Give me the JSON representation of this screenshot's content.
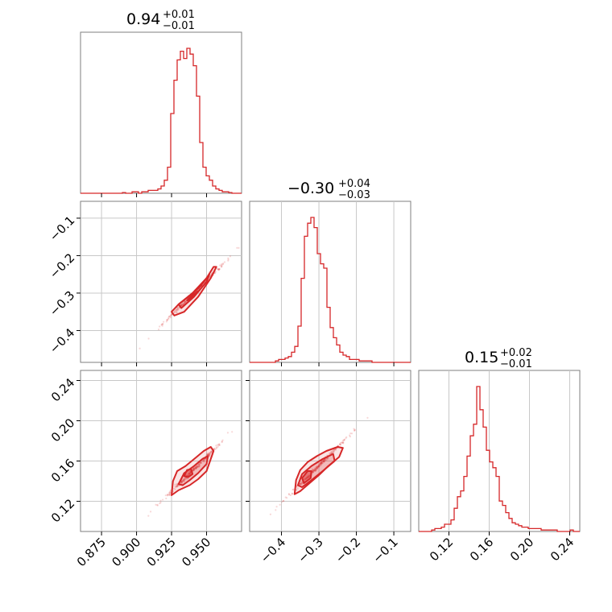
{
  "colors": {
    "accent": "#d62728",
    "grid": "#c8c8c8",
    "frame": "#7f7f7f"
  },
  "chart_data": {
    "type": "corner",
    "parameters": [
      {
        "title_value": "0.94",
        "title_plus": "+0.01",
        "title_minus": "−0.01",
        "range": [
          0.86,
          0.975
        ]
      },
      {
        "title_value": "−0.30",
        "title_plus": "+0.04",
        "title_minus": "−0.03",
        "range": [
          -0.485,
          -0.055
        ]
      },
      {
        "title_value": "0.15",
        "title_plus": "+0.02",
        "title_minus": "−0.01",
        "range": [
          0.09,
          0.25
        ]
      }
    ],
    "ticks": [
      {
        "values": [
          0.875,
          0.9,
          0.925,
          0.95
        ],
        "labels": [
          "0.875",
          "0.900",
          "0.925",
          "0.950"
        ]
      },
      {
        "values": [
          -0.4,
          -0.3,
          -0.2,
          -0.1
        ],
        "labels": [
          "−0.4",
          "−0.3",
          "−0.2",
          "−0.1"
        ]
      },
      {
        "values": [
          0.12,
          0.16,
          0.2,
          0.24
        ],
        "labels": [
          "0.12",
          "0.16",
          "0.20",
          "0.24"
        ]
      }
    ],
    "histograms": [
      {
        "param": 0,
        "bin_edges": [
          0.86,
          0.8623,
          0.8646,
          0.8669,
          0.8692,
          0.8715,
          0.8738,
          0.8761,
          0.8784,
          0.8807,
          0.883,
          0.8853,
          0.8876,
          0.8899,
          0.8922,
          0.8945,
          0.8968,
          0.8991,
          0.9014,
          0.9037,
          0.906,
          0.9083,
          0.9106,
          0.9129,
          0.9152,
          0.9175,
          0.9198,
          0.9221,
          0.9244,
          0.9267,
          0.929,
          0.9313,
          0.9336,
          0.9359,
          0.9382,
          0.9405,
          0.9428,
          0.9451,
          0.9474,
          0.9497,
          0.952,
          0.9543,
          0.9566,
          0.9589,
          0.9612,
          0.9635,
          0.9658,
          0.9681,
          0.9704,
          0.9727,
          0.975
        ],
        "counts": [
          0,
          0,
          0,
          0,
          0,
          0,
          0,
          0,
          0,
          0,
          0,
          0,
          0,
          0.005,
          0,
          0,
          0.01,
          0.01,
          0,
          0.01,
          0.01,
          0.02,
          0.02,
          0.02,
          0.03,
          0.05,
          0.09,
          0.18,
          0.55,
          0.78,
          0.92,
          0.98,
          0.93,
          1.0,
          0.96,
          0.88,
          0.67,
          0.35,
          0.18,
          0.12,
          0.09,
          0.05,
          0.03,
          0.02,
          0.01,
          0.01,
          0.005,
          0,
          0,
          0
        ]
      },
      {
        "param": 1,
        "bin_edges": [
          -0.485,
          -0.4764,
          -0.4678,
          -0.4592,
          -0.4506,
          -0.442,
          -0.4334,
          -0.4248,
          -0.4162,
          -0.4076,
          -0.399,
          -0.3904,
          -0.3818,
          -0.3732,
          -0.3646,
          -0.356,
          -0.3474,
          -0.3388,
          -0.3302,
          -0.3216,
          -0.313,
          -0.3044,
          -0.2958,
          -0.2872,
          -0.2786,
          -0.27,
          -0.2614,
          -0.2528,
          -0.2442,
          -0.2356,
          -0.227,
          -0.2184,
          -0.2098,
          -0.2012,
          -0.1926,
          -0.184,
          -0.1754,
          -0.1668,
          -0.1582,
          -0.1496,
          -0.141,
          -0.1324,
          -0.1238,
          -0.1152,
          -0.1066,
          -0.098,
          -0.0894,
          -0.0808,
          -0.0722,
          -0.0636,
          -0.055
        ],
        "counts": [
          0,
          0,
          0,
          0,
          0,
          0,
          0,
          0,
          0.01,
          0.02,
          0.02,
          0.03,
          0.04,
          0.07,
          0.11,
          0.25,
          0.58,
          0.87,
          0.96,
          1.0,
          0.93,
          0.75,
          0.68,
          0.65,
          0.38,
          0.24,
          0.17,
          0.12,
          0.07,
          0.05,
          0.04,
          0.02,
          0.02,
          0.02,
          0.01,
          0.01,
          0.01,
          0.01,
          0,
          0,
          0,
          0,
          0,
          0,
          0,
          0,
          0,
          0,
          0,
          0
        ]
      },
      {
        "param": 2,
        "bin_edges": [
          0.09,
          0.0932,
          0.0964,
          0.0996,
          0.1028,
          0.106,
          0.1092,
          0.1124,
          0.1156,
          0.1188,
          0.122,
          0.1252,
          0.1284,
          0.1316,
          0.1348,
          0.138,
          0.1412,
          0.1444,
          0.1476,
          0.1508,
          0.154,
          0.1572,
          0.1604,
          0.1636,
          0.1668,
          0.17,
          0.1732,
          0.1764,
          0.1796,
          0.1828,
          0.186,
          0.1892,
          0.1924,
          0.1956,
          0.1988,
          0.202,
          0.2052,
          0.2084,
          0.2116,
          0.2148,
          0.218,
          0.2212,
          0.2244,
          0.2276,
          0.2308,
          0.234,
          0.2372,
          0.2404,
          0.2436,
          0.2468,
          0.25
        ],
        "counts": [
          0,
          0,
          0,
          0,
          0.01,
          0.02,
          0.02,
          0.03,
          0.05,
          0.05,
          0.08,
          0.16,
          0.24,
          0.28,
          0.38,
          0.52,
          0.66,
          0.74,
          1.0,
          0.84,
          0.72,
          0.56,
          0.48,
          0.44,
          0.38,
          0.21,
          0.18,
          0.13,
          0.09,
          0.06,
          0.05,
          0.04,
          0.03,
          0.03,
          0.02,
          0.02,
          0.02,
          0.02,
          0.01,
          0.01,
          0.01,
          0.01,
          0.01,
          0,
          0,
          0,
          0,
          0.01,
          0,
          0
        ]
      }
    ],
    "pairs": [
      {
        "x_param": 0,
        "y_param": 1,
        "contours": [
          {
            "level": "outer",
            "points": [
              [
                0.925,
                -0.35
              ],
              [
                0.93,
                -0.33
              ],
              [
                0.94,
                -0.3
              ],
              [
                0.95,
                -0.26
              ],
              [
                0.955,
                -0.23
              ],
              [
                0.957,
                -0.23
              ],
              [
                0.953,
                -0.26
              ],
              [
                0.944,
                -0.31
              ],
              [
                0.934,
                -0.35
              ],
              [
                0.927,
                -0.36
              ]
            ]
          },
          {
            "level": "mid",
            "points": [
              [
                0.93,
                -0.33
              ],
              [
                0.937,
                -0.31
              ],
              [
                0.946,
                -0.28
              ],
              [
                0.952,
                -0.25
              ],
              [
                0.95,
                -0.27
              ],
              [
                0.941,
                -0.31
              ],
              [
                0.932,
                -0.34
              ]
            ]
          },
          {
            "level": "inner",
            "points": [
              [
                0.936,
                -0.32
              ],
              [
                0.94,
                -0.305
              ],
              [
                0.944,
                -0.295
              ],
              [
                0.942,
                -0.305
              ],
              [
                0.937,
                -0.318
              ]
            ]
          }
        ]
      },
      {
        "x_param": 0,
        "y_param": 2,
        "contours": [
          {
            "level": "outer",
            "points": [
              [
                0.925,
                0.126
              ],
              [
                0.926,
                0.14
              ],
              [
                0.929,
                0.15
              ],
              [
                0.935,
                0.155
              ],
              [
                0.942,
                0.163
              ],
              [
                0.948,
                0.17
              ],
              [
                0.953,
                0.174
              ],
              [
                0.955,
                0.17
              ],
              [
                0.952,
                0.158
              ],
              [
                0.95,
                0.15
              ],
              [
                0.944,
                0.142
              ],
              [
                0.938,
                0.136
              ],
              [
                0.93,
                0.131
              ]
            ]
          },
          {
            "level": "mid",
            "points": [
              [
                0.93,
                0.137
              ],
              [
                0.934,
                0.148
              ],
              [
                0.941,
                0.155
              ],
              [
                0.947,
                0.162
              ],
              [
                0.951,
                0.165
              ],
              [
                0.95,
                0.157
              ],
              [
                0.944,
                0.148
              ],
              [
                0.938,
                0.141
              ],
              [
                0.933,
                0.136
              ]
            ]
          },
          {
            "level": "inner",
            "points": [
              [
                0.934,
                0.145
              ],
              [
                0.936,
                0.151
              ],
              [
                0.939,
                0.152
              ],
              [
                0.94,
                0.147
              ],
              [
                0.937,
                0.144
              ]
            ]
          }
        ]
      },
      {
        "x_param": 1,
        "y_param": 2,
        "contours": [
          {
            "level": "outer",
            "points": [
              [
                -0.365,
                0.127
              ],
              [
                -0.361,
                0.141
              ],
              [
                -0.35,
                0.151
              ],
              [
                -0.33,
                0.159
              ],
              [
                -0.305,
                0.165
              ],
              [
                -0.28,
                0.17
              ],
              [
                -0.25,
                0.174
              ],
              [
                -0.236,
                0.173
              ],
              [
                -0.246,
                0.164
              ],
              [
                -0.275,
                0.155
              ],
              [
                -0.3,
                0.146
              ],
              [
                -0.325,
                0.138
              ],
              [
                -0.35,
                0.13
              ]
            ]
          },
          {
            "level": "mid",
            "points": [
              [
                -0.356,
                0.136
              ],
              [
                -0.345,
                0.147
              ],
              [
                -0.32,
                0.155
              ],
              [
                -0.29,
                0.162
              ],
              [
                -0.262,
                0.167
              ],
              [
                -0.258,
                0.16
              ],
              [
                -0.29,
                0.15
              ],
              [
                -0.32,
                0.141
              ],
              [
                -0.345,
                0.134
              ]
            ]
          },
          {
            "level": "inner",
            "points": [
              [
                -0.345,
                0.143
              ],
              [
                -0.33,
                0.15
              ],
              [
                -0.32,
                0.15
              ],
              [
                -0.322,
                0.143
              ],
              [
                -0.34,
                0.138
              ]
            ]
          }
        ]
      }
    ]
  }
}
